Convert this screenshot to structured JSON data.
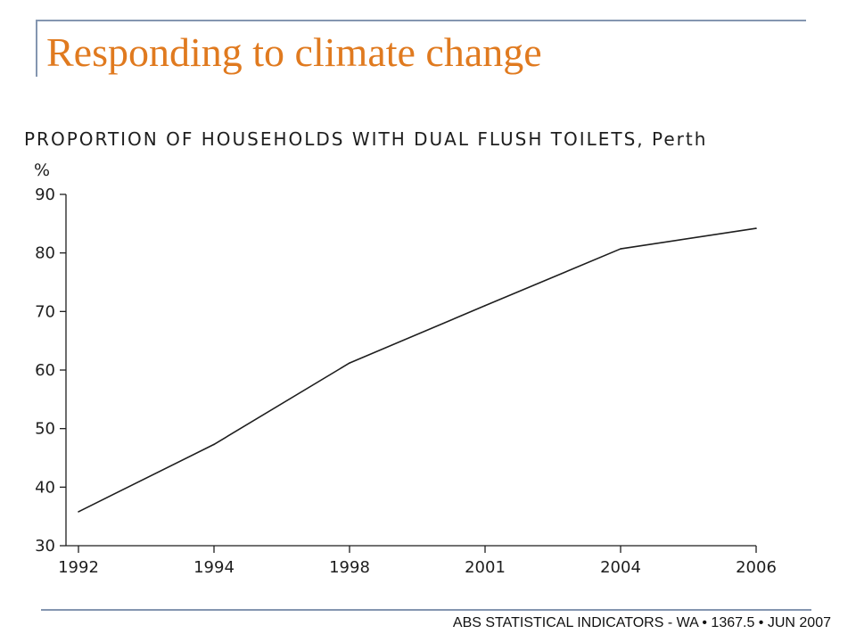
{
  "slide": {
    "title": "Responding to climate change",
    "footer": "ABS STATISTICAL INDICATORS - WA • 1367.5 • JUN 2007",
    "title_color": "#e07a1f",
    "rule_color": "#8496b0"
  },
  "chart_data": {
    "type": "line",
    "title": "PROPORTION OF HOUSEHOLDS WITH DUAL FLUSH TOILETS, Perth",
    "ylabel": "%",
    "xlabel": "",
    "categories": [
      "1992",
      "1994",
      "1998",
      "2001",
      "2004",
      "2006"
    ],
    "series": [
      {
        "values": [
          35.8,
          47.3,
          61.2,
          71.0,
          80.7,
          84.2
        ]
      }
    ],
    "ylim": [
      30,
      90
    ],
    "yticks": [
      30,
      40,
      50,
      60,
      70,
      80,
      90
    ],
    "grid": false,
    "line_color": "#1e1e1e"
  }
}
